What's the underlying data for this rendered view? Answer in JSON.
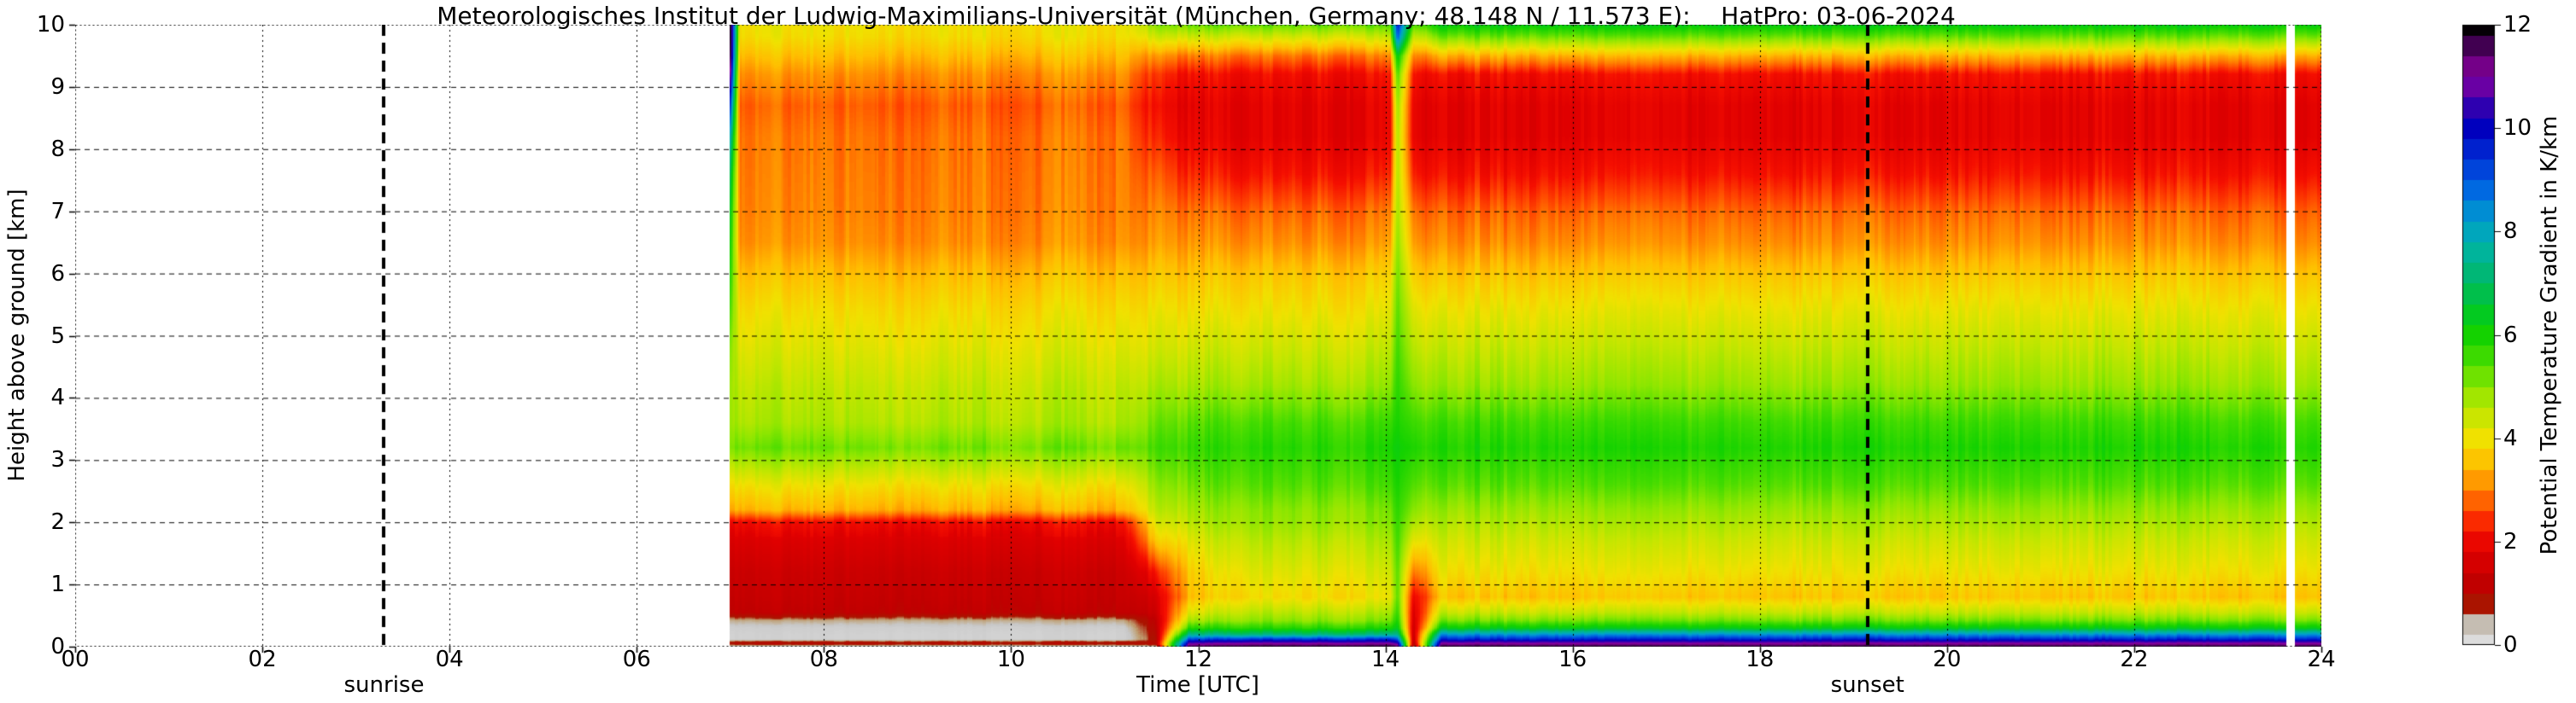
{
  "title": "Meteorologisches Institut der Ludwig-Maximilians-Universität (München, Germany; 48.148 N / 11.573 E):    HatPro: 03-06-2024",
  "xaxis": {
    "label": "Time [UTC]",
    "tick_values": [
      0,
      2,
      4,
      6,
      8,
      10,
      12,
      14,
      16,
      18,
      20,
      22,
      24
    ],
    "tick_labels": [
      "00",
      "02",
      "04",
      "06",
      "08",
      "10",
      "12",
      "14",
      "16",
      "18",
      "20",
      "22",
      "24"
    ],
    "range": [
      0,
      24
    ]
  },
  "yaxis": {
    "label": "Height above ground [km]",
    "tick_values": [
      0,
      1,
      2,
      3,
      4,
      5,
      6,
      7,
      8,
      9,
      10
    ],
    "tick_labels": [
      "0",
      "1",
      "2",
      "3",
      "4",
      "5",
      "6",
      "7",
      "8",
      "9",
      "10"
    ],
    "range": [
      0,
      10
    ]
  },
  "colorbar": {
    "label": "Potential Temperature Gradient in K/km",
    "tick_values": [
      0,
      2,
      4,
      6,
      8,
      10,
      12
    ],
    "tick_labels": [
      "0",
      "2",
      "4",
      "6",
      "8",
      "10",
      "12"
    ],
    "range": [
      0,
      12
    ]
  },
  "annotations": {
    "sunrise": {
      "label": "sunrise",
      "time": 3.3
    },
    "sunset": {
      "label": "sunset",
      "time": 19.15
    }
  },
  "chart_data": {
    "type": "heatmap",
    "title": "Potential temperature gradient time-height section, HATPRO radiometer, 03-06-2024",
    "x_unit": "hours UTC",
    "y_unit": "km above ground",
    "value_unit": "K/km",
    "x_range": [
      0,
      24
    ],
    "y_range": [
      0,
      10
    ],
    "value_range": [
      0,
      12
    ],
    "data_start_time": 7.0,
    "data_end_time": 24.0,
    "no_data_gaps": [
      [
        23.63,
        23.72
      ]
    ],
    "grid": {
      "x_step": 2,
      "y_step": 1,
      "style": "black dashed"
    },
    "heights": [
      0,
      0.04,
      0.07,
      0.12,
      0.2,
      0.3,
      0.42,
      0.55,
      0.8,
      1.2,
      1.7,
      2.0,
      2.2,
      2.6,
      3.2,
      3.6,
      4.2,
      4.8,
      5.4,
      6.0,
      6.5,
      7.0,
      7.6,
      8.2,
      8.7,
      9.2,
      9.5,
      9.8,
      10.0
    ],
    "profiles_K_per_km": [
      {
        "t": 7.0,
        "values": [
          0.15,
          0.9,
          0.9,
          0.2,
          0.2,
          0.25,
          0.5,
          1.2,
          1.3,
          1.4,
          1.7,
          2.1,
          3.4,
          4.0,
          5.2,
          5.0,
          5.0,
          5.2,
          5.6,
          6.0,
          6.2,
          6.5,
          7.0,
          8.0,
          9.5,
          11.0,
          11.8,
          12,
          12
        ]
      },
      {
        "t": 7.1,
        "values": [
          0.15,
          0.9,
          0.9,
          0.2,
          0.2,
          0.25,
          0.5,
          1.2,
          1.3,
          1.4,
          1.7,
          2.1,
          3.4,
          4.0,
          5.2,
          4.7,
          4.5,
          4.2,
          3.9,
          3.5,
          3.1,
          3.0,
          2.95,
          2.9,
          2.75,
          3.1,
          3.5,
          3.9,
          4.0
        ]
      },
      {
        "t": 11.2,
        "values": [
          0.15,
          0.9,
          0.9,
          0.2,
          0.2,
          0.25,
          0.5,
          1.2,
          1.3,
          1.4,
          1.7,
          2.1,
          3.4,
          4.0,
          5.2,
          4.7,
          4.5,
          4.2,
          3.9,
          3.5,
          3.1,
          3.0,
          2.95,
          2.9,
          2.75,
          3.1,
          3.5,
          3.9,
          4.0
        ]
      },
      {
        "t": 11.55,
        "values": [
          0.3,
          1.0,
          1.0,
          0.9,
          1.0,
          1.1,
          1.2,
          1.4,
          1.6,
          2.2,
          3.6,
          4.2,
          4.5,
          4.9,
          5.5,
          5.2,
          4.7,
          4.3,
          4.0,
          3.6,
          3.2,
          3.0,
          2.7,
          2.3,
          2.1,
          2.4,
          3.1,
          4.3,
          5.0
        ]
      },
      {
        "t": 11.9,
        "values": [
          11.6,
          11.0,
          10.4,
          9.2,
          7.4,
          5.8,
          4.8,
          4.2,
          3.5,
          3.7,
          4.2,
          4.6,
          4.8,
          5.2,
          5.7,
          5.4,
          4.8,
          4.4,
          4.0,
          3.6,
          3.2,
          2.9,
          2.4,
          2.0,
          1.9,
          2.2,
          3.0,
          4.4,
          5.3
        ]
      },
      {
        "t": 12.5,
        "values": [
          11.8,
          11.2,
          10.6,
          9.4,
          7.2,
          5.8,
          5.0,
          4.6,
          3.9,
          4.2,
          4.6,
          4.9,
          5.0,
          5.4,
          5.8,
          5.5,
          4.8,
          4.4,
          4.0,
          3.6,
          3.1,
          2.8,
          2.2,
          1.85,
          1.85,
          2.1,
          2.9,
          4.3,
          5.3
        ]
      },
      {
        "t": 14.05,
        "values": [
          11.8,
          11.2,
          10.6,
          9.4,
          7.2,
          5.8,
          5.0,
          4.6,
          3.9,
          4.2,
          4.6,
          4.9,
          5.0,
          5.4,
          5.8,
          5.5,
          4.8,
          4.4,
          4.0,
          3.6,
          3.1,
          2.8,
          2.2,
          1.85,
          1.85,
          2.1,
          2.9,
          4.3,
          5.3
        ]
      },
      {
        "t": 14.13,
        "values": [
          11.4,
          10.8,
          10.0,
          8.8,
          7.2,
          6.2,
          5.8,
          5.5,
          5.2,
          5.2,
          5.4,
          5.5,
          5.6,
          5.8,
          6.0,
          5.8,
          5.6,
          5.4,
          5.2,
          5.0,
          4.8,
          4.6,
          4.5,
          4.5,
          4.7,
          5.3,
          6.2,
          8.8,
          9.6
        ]
      },
      {
        "t": 14.3,
        "values": [
          0.4,
          0.8,
          1.0,
          1.2,
          1.3,
          1.4,
          1.5,
          1.6,
          1.9,
          2.8,
          4.0,
          4.6,
          4.9,
          5.3,
          5.8,
          5.5,
          4.9,
          4.5,
          4.1,
          3.6,
          3.1,
          2.8,
          2.2,
          1.85,
          1.85,
          2.1,
          2.9,
          4.3,
          5.3
        ]
      },
      {
        "t": 14.6,
        "values": [
          11.8,
          11.2,
          10.7,
          9.6,
          8.3,
          6.3,
          5.2,
          4.5,
          3.6,
          4.0,
          4.4,
          4.7,
          4.9,
          5.4,
          5.9,
          5.6,
          4.9,
          4.5,
          4.1,
          3.6,
          3.1,
          2.8,
          2.2,
          1.85,
          1.85,
          2.15,
          3.4,
          5.2,
          6.3
        ]
      },
      {
        "t": 24.0,
        "values": [
          11.8,
          11.2,
          10.7,
          9.6,
          8.3,
          6.3,
          5.2,
          4.5,
          3.6,
          4.0,
          4.4,
          4.7,
          4.9,
          5.4,
          5.9,
          5.6,
          4.9,
          4.5,
          4.1,
          3.6,
          3.1,
          2.8,
          2.2,
          1.85,
          1.85,
          2.15,
          3.4,
          5.2,
          6.3
        ]
      }
    ],
    "colormap_stops": [
      [
        0.0,
        "#dcdcdc"
      ],
      [
        0.35,
        "#c8c8c8"
      ],
      [
        0.55,
        "#bf9f72"
      ],
      [
        0.8,
        "#aa1400"
      ],
      [
        1.2,
        "#c00000"
      ],
      [
        1.8,
        "#e00000"
      ],
      [
        2.2,
        "#f50f00"
      ],
      [
        2.6,
        "#ff4600"
      ],
      [
        3.0,
        "#ff8200"
      ],
      [
        3.5,
        "#ffbe00"
      ],
      [
        4.0,
        "#f0e100"
      ],
      [
        4.5,
        "#c3e600"
      ],
      [
        5.0,
        "#8ce600"
      ],
      [
        5.5,
        "#46dc00"
      ],
      [
        6.0,
        "#14d200"
      ],
      [
        6.5,
        "#00c828"
      ],
      [
        7.0,
        "#00b964"
      ],
      [
        7.6,
        "#00b49b"
      ],
      [
        8.2,
        "#00a0cd"
      ],
      [
        8.8,
        "#0069e1"
      ],
      [
        9.4,
        "#0032d7"
      ],
      [
        10.0,
        "#0000be"
      ],
      [
        10.6,
        "#4600aa"
      ],
      [
        11.0,
        "#8c00a0"
      ],
      [
        11.5,
        "#500064"
      ],
      [
        12.0,
        "#050005"
      ]
    ],
    "special_colors": {
      "no_data": "#ffffff",
      "sun_lines": "#000000"
    }
  }
}
